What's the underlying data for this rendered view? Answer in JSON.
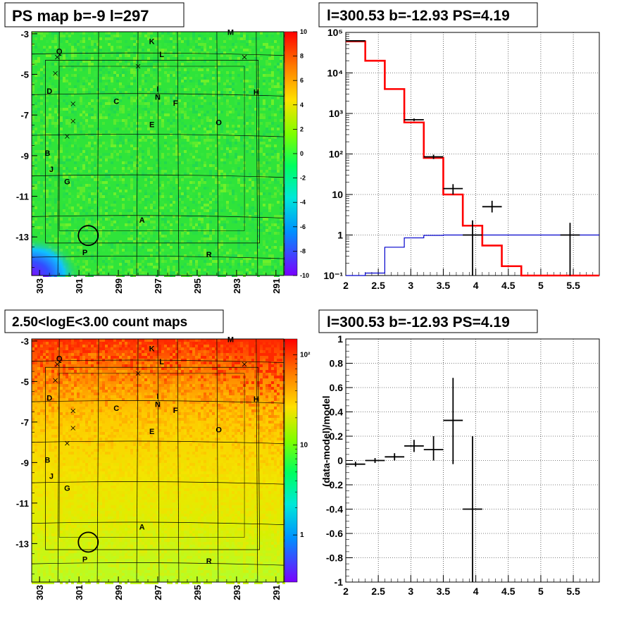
{
  "panels": {
    "psmap": {
      "title": "PS map b=-9 l=297",
      "y_ticks": [
        "-3",
        "-5",
        "-7",
        "-9",
        "-11",
        "-13"
      ],
      "x_ticks": [
        "303",
        "301",
        "299",
        "297",
        "295",
        "293",
        "291"
      ],
      "colorbar_ticks": [
        "10",
        "8",
        "6",
        "4",
        "2",
        "0",
        "-2",
        "-4",
        "-6",
        "-8",
        "-10"
      ],
      "colors": {
        "bg": "#2fe43a",
        "hot": "#ff2a00",
        "cold": "#5a20ff"
      }
    },
    "countmap": {
      "title": "2.50<logE<3.00 count maps",
      "y_ticks": [
        "-3",
        "-5",
        "-7",
        "-9",
        "-11",
        "-13"
      ],
      "x_ticks": [
        "303",
        "301",
        "299",
        "297",
        "295",
        "293",
        "291"
      ],
      "colorbar_ticks": [
        "10²",
        "10",
        "1"
      ],
      "colors": {
        "top": "#ff3300",
        "mid": "#ffd200",
        "bottom": "#c8ff20"
      }
    },
    "source_labels": [
      {
        "t": "M",
        "l": 293.3,
        "b": -3.05
      },
      {
        "t": "K",
        "l": 297.3,
        "b": -3.5
      },
      {
        "t": "Q",
        "l": 302.0,
        "b": -4.0
      },
      {
        "t": "L",
        "l": 296.8,
        "b": -4.15
      },
      {
        "t": "D",
        "l": 302.5,
        "b": -5.95
      },
      {
        "t": "H",
        "l": 292.0,
        "b": -6.0
      },
      {
        "t": "I",
        "l": 297.0,
        "b": -5.85
      },
      {
        "t": "N",
        "l": 297.0,
        "b": -6.25
      },
      {
        "t": "C",
        "l": 299.1,
        "b": -6.45
      },
      {
        "t": "F",
        "l": 296.1,
        "b": -6.55
      },
      {
        "t": "E",
        "l": 297.3,
        "b": -7.6
      },
      {
        "t": "O",
        "l": 293.9,
        "b": -7.5
      },
      {
        "t": "B",
        "l": 302.6,
        "b": -9.0
      },
      {
        "t": "J",
        "l": 302.4,
        "b": -9.8
      },
      {
        "t": "G",
        "l": 301.6,
        "b": -10.4
      },
      {
        "t": "A",
        "l": 297.8,
        "b": -12.3
      },
      {
        "t": "P",
        "l": 300.7,
        "b": -13.9
      },
      {
        "t": "R",
        "l": 294.4,
        "b": -14.0
      }
    ],
    "crosses": [
      {
        "l": 302.1,
        "b": -4.15
      },
      {
        "l": 302.2,
        "b": -4.95
      },
      {
        "l": 292.6,
        "b": -4.15
      },
      {
        "l": 298.0,
        "b": -4.6
      },
      {
        "l": 301.3,
        "b": -6.45
      },
      {
        "l": 301.3,
        "b": -7.3
      },
      {
        "l": 301.6,
        "b": -8.05
      }
    ],
    "spectrum": {
      "title": "l=300.53 b=-12.93 PS=4.19",
      "y_tick_labels": [
        "10⁻¹",
        "1",
        "10",
        "10²",
        "10³",
        "10⁴",
        "10⁵"
      ]
    },
    "ratio": {
      "title": "l=300.53 b=-12.93 PS=4.19",
      "ylabel": "(data-model)/model"
    }
  },
  "chart_data": [
    {
      "type": "heatmap",
      "title": "PS map b=-9 l=297",
      "xlim": [
        303.4,
        290.6
      ],
      "ylim": [
        -14.9,
        -2.9
      ],
      "colorbar_range": [
        -10,
        10
      ],
      "note_values": {
        "background_TS": 0.5,
        "hotspot_l": 302.6,
        "hotspot_b": -14.5,
        "hotspot_value": -10
      },
      "circle": {
        "l": 300.53,
        "b": -12.93
      }
    },
    {
      "type": "heatmap",
      "title": "2.50<logE<3.00 count maps",
      "xlim": [
        303.4,
        290.6
      ],
      "ylim": [
        -14.9,
        -2.9
      ],
      "colorbar_log_range": [
        0.3,
        150
      ],
      "circle": {
        "l": 300.53,
        "b": -12.93
      }
    },
    {
      "type": "line",
      "title": "l=300.53 b=-12.93 PS=4.19",
      "xlim": [
        2,
        5.9
      ],
      "ylim": [
        0.1,
        100000
      ],
      "yscale": "log",
      "x_ticks": [
        2,
        2.5,
        3,
        3.5,
        4,
        4.5,
        5,
        5.5
      ],
      "grid": true,
      "series": [
        {
          "color": "#ff0000",
          "edges": [
            2.0,
            2.3,
            2.6,
            2.9,
            3.2,
            3.5,
            3.8,
            4.1,
            4.4,
            4.7,
            5.9
          ],
          "values": [
            60000,
            20000,
            4000,
            600,
            80,
            10,
            1.7,
            0.55,
            0.17,
            0.1
          ]
        },
        {
          "color": "#0000cc",
          "edges": [
            2.0,
            2.3,
            2.6,
            2.9,
            3.2,
            3.5,
            5.9
          ],
          "values": [
            0.09,
            0.115,
            0.5,
            0.85,
            0.98,
            1.0
          ]
        },
        {
          "color": "#000000",
          "points": [
            {
              "x": 2.15,
              "y": 62000,
              "xerr": 0.15,
              "ylo": 60000,
              "yhi": 64000
            },
            {
              "x": 3.05,
              "y": 700,
              "xerr": 0.15,
              "ylo": 650,
              "yhi": 750
            },
            {
              "x": 3.35,
              "y": 85,
              "xerr": 0.15,
              "ylo": 75,
              "yhi": 96
            },
            {
              "x": 3.65,
              "y": 14,
              "xerr": 0.15,
              "ylo": 10,
              "yhi": 18
            },
            {
              "x": 3.95,
              "y": 1,
              "xerr": 0.15,
              "ylo": 0.1,
              "yhi": 2.3
            },
            {
              "x": 4.25,
              "y": 5,
              "xerr": 0.15,
              "ylo": 3.6,
              "yhi": 7
            },
            {
              "x": 5.45,
              "y": 1,
              "xerr": 0.15,
              "ylo": 0.1,
              "yhi": 2
            }
          ]
        }
      ]
    },
    {
      "type": "scatter",
      "title": "l=300.53 b=-12.93 PS=4.19",
      "ylabel": "(data-model)/model",
      "xlim": [
        2,
        5.9
      ],
      "ylim": [
        -1,
        1
      ],
      "x_ticks": [
        2,
        2.5,
        3,
        3.5,
        4,
        4.5,
        5,
        5.5
      ],
      "y_ticks": [
        -1,
        -0.8,
        -0.6,
        -0.4,
        -0.2,
        0,
        0.2,
        0.4,
        0.6,
        0.8,
        1
      ],
      "grid": true,
      "points": [
        {
          "x": 2.15,
          "y": -0.03,
          "xerr": 0.15,
          "ylo": -0.05,
          "yhi": -0.01
        },
        {
          "x": 2.45,
          "y": 0.0,
          "xerr": 0.15,
          "ylo": -0.02,
          "yhi": 0.02
        },
        {
          "x": 2.75,
          "y": 0.03,
          "xerr": 0.15,
          "ylo": 0.0,
          "yhi": 0.06
        },
        {
          "x": 3.05,
          "y": 0.12,
          "xerr": 0.15,
          "ylo": 0.07,
          "yhi": 0.17
        },
        {
          "x": 3.35,
          "y": 0.09,
          "xerr": 0.15,
          "ylo": 0.0,
          "yhi": 0.2
        },
        {
          "x": 3.65,
          "y": 0.33,
          "xerr": 0.15,
          "ylo": -0.03,
          "yhi": 0.68
        },
        {
          "x": 3.95,
          "y": -0.4,
          "xerr": 0.15,
          "ylo": -1.0,
          "yhi": 0.2
        }
      ]
    }
  ]
}
